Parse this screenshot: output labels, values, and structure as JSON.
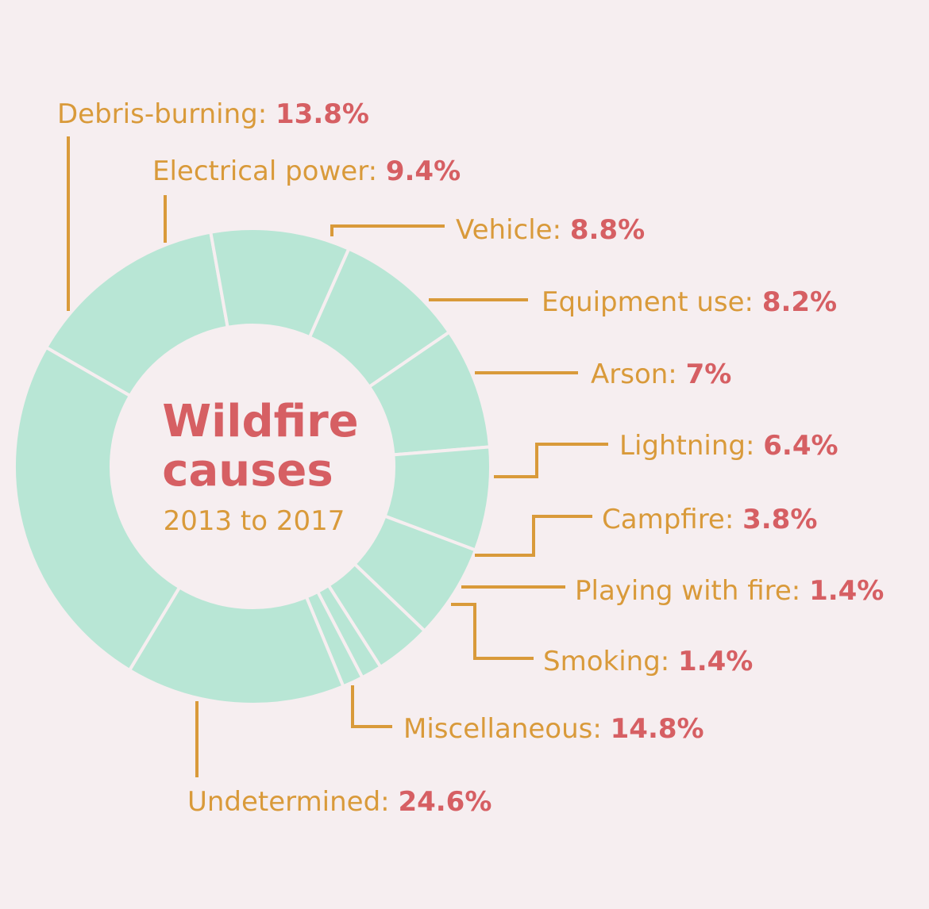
{
  "chart_data": {
    "type": "pie",
    "title_line1": "Wildfire",
    "title_line2": "causes",
    "subtitle": "2013 to 2017",
    "colors": {
      "slice": "#b8e6d5",
      "divider": "#f6eef0",
      "leader": "#d99a3a",
      "name": "#d99a3a",
      "value": "#d65f63"
    },
    "slices": [
      {
        "label": "Debris-burning:",
        "value_text": "13.8%",
        "value": 13.8
      },
      {
        "label": "Electrical power:",
        "value_text": "9.4%",
        "value": 9.4
      },
      {
        "label": "Vehicle:",
        "value_text": "8.8%",
        "value": 8.8
      },
      {
        "label": "Equipment use:",
        "value_text": "8.2%",
        "value": 8.2
      },
      {
        "label": "Arson:",
        "value_text": "7%",
        "value": 7
      },
      {
        "label": "Lightning:",
        "value_text": "6.4%",
        "value": 6.4
      },
      {
        "label": "Campfire:",
        "value_text": "3.8%",
        "value": 3.8
      },
      {
        "label": "Playing with fire:",
        "value_text": "1.4%",
        "value": 1.4
      },
      {
        "label": "Smoking:",
        "value_text": "1.4%",
        "value": 1.4
      },
      {
        "label": "Miscellaneous:",
        "value_text": "14.8%",
        "value": 14.8
      },
      {
        "label": "Undetermined:",
        "value_text": "24.6%",
        "value": 24.6
      }
    ]
  }
}
